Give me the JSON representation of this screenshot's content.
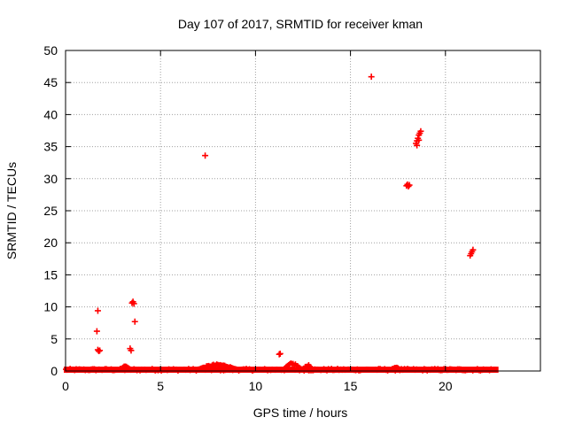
{
  "chart_data": {
    "type": "scatter",
    "title": "Day 107 of 2017, SRMTID for receiver kman",
    "xlabel": "GPS time / hours",
    "ylabel": "SRMTID / TECUs",
    "xlim": [
      0,
      25
    ],
    "ylim": [
      0,
      50
    ],
    "xticks": [
      0,
      5,
      10,
      15,
      20
    ],
    "yticks": [
      0,
      5,
      10,
      15,
      20,
      25,
      30,
      35,
      40,
      45,
      50
    ],
    "grid": true,
    "marker": "+",
    "color": "#ff0000",
    "baseline_band": {
      "x_range": [
        0.0,
        22.7
      ],
      "y_range": [
        0.0,
        0.4
      ]
    },
    "baseline_bumps": [
      {
        "x_range": [
          7.0,
          9.0
        ],
        "y_max": 1.1
      },
      {
        "x_range": [
          11.5,
          12.4
        ],
        "y_max": 1.3
      },
      {
        "x_range": [
          12.5,
          13.0
        ],
        "y_max": 1.0
      },
      {
        "x_range": [
          2.9,
          3.4
        ],
        "y_max": 0.8
      },
      {
        "x_range": [
          17.2,
          17.6
        ],
        "y_max": 0.6
      }
    ],
    "series": [
      {
        "name": "SRMTID",
        "points": [
          {
            "x": 1.7,
            "y": 9.4
          },
          {
            "x": 1.65,
            "y": 6.2
          },
          {
            "x": 1.7,
            "y": 3.3
          },
          {
            "x": 1.75,
            "y": 3.1
          },
          {
            "x": 1.8,
            "y": 3.2
          },
          {
            "x": 3.4,
            "y": 3.5
          },
          {
            "x": 3.45,
            "y": 3.2
          },
          {
            "x": 3.5,
            "y": 10.6
          },
          {
            "x": 3.55,
            "y": 10.8
          },
          {
            "x": 3.6,
            "y": 10.5
          },
          {
            "x": 3.65,
            "y": 7.7
          },
          {
            "x": 7.35,
            "y": 33.6
          },
          {
            "x": 11.25,
            "y": 2.6
          },
          {
            "x": 11.3,
            "y": 2.7
          },
          {
            "x": 16.1,
            "y": 45.9
          },
          {
            "x": 17.95,
            "y": 28.9
          },
          {
            "x": 18.0,
            "y": 29.1
          },
          {
            "x": 18.05,
            "y": 28.8
          },
          {
            "x": 18.1,
            "y": 29.0
          },
          {
            "x": 18.45,
            "y": 35.5
          },
          {
            "x": 18.5,
            "y": 35.9
          },
          {
            "x": 18.55,
            "y": 36.3
          },
          {
            "x": 18.6,
            "y": 36.8
          },
          {
            "x": 18.65,
            "y": 37.1
          },
          {
            "x": 18.7,
            "y": 37.4
          },
          {
            "x": 18.5,
            "y": 35.2
          },
          {
            "x": 18.6,
            "y": 36.0
          },
          {
            "x": 21.3,
            "y": 18.0
          },
          {
            "x": 21.35,
            "y": 18.3
          },
          {
            "x": 21.4,
            "y": 18.6
          },
          {
            "x": 21.45,
            "y": 18.9
          }
        ]
      }
    ]
  }
}
